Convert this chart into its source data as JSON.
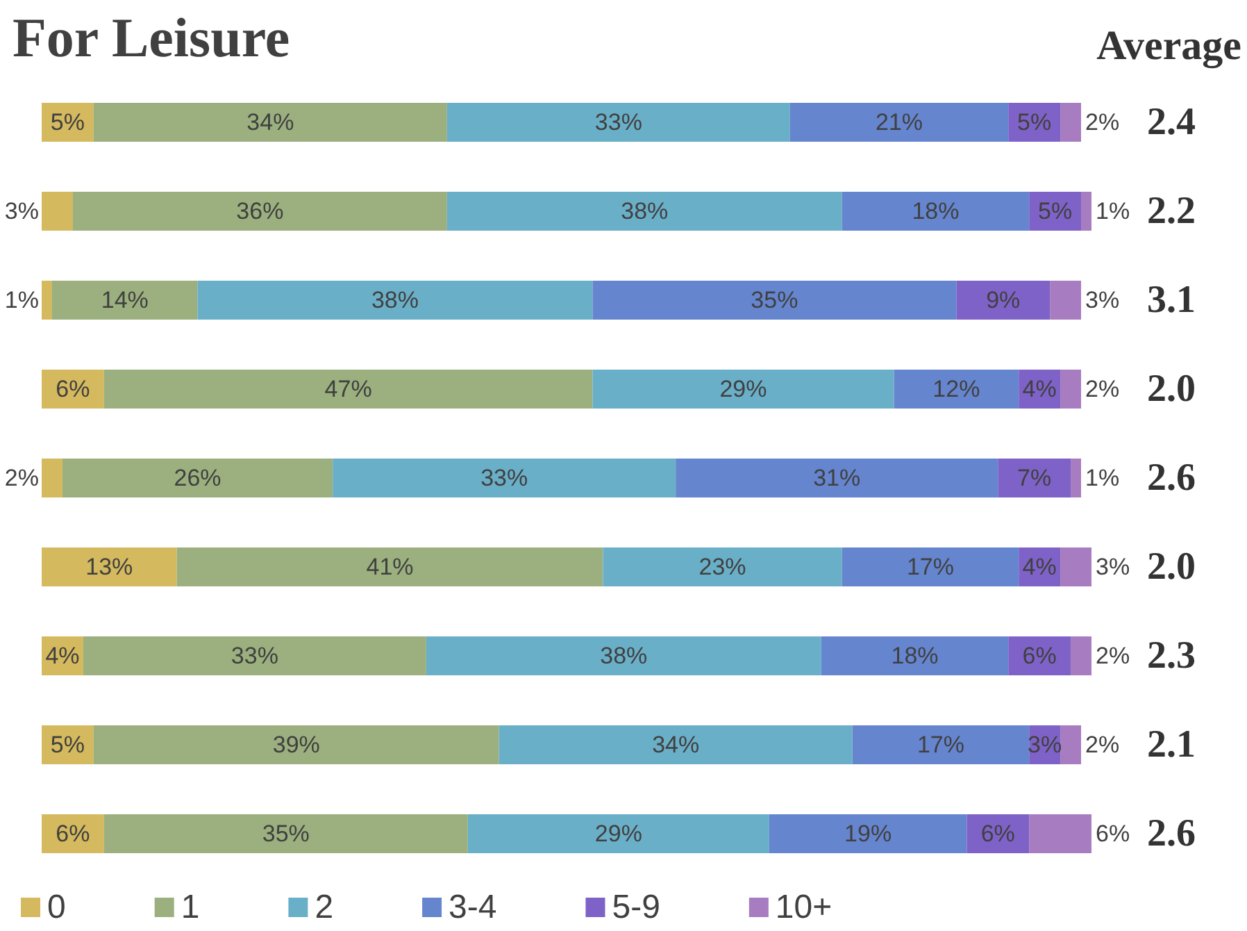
{
  "chart_data": {
    "type": "bar",
    "orientation": "horizontal",
    "stacked": true,
    "title": "For Leisure",
    "categories": [
      null,
      null,
      null,
      null,
      null,
      null,
      null,
      null,
      null
    ],
    "xlim": [
      0,
      101
    ],
    "tick_labels": false,
    "grid": false,
    "legend": "bottom",
    "series": [
      {
        "name": "0",
        "color": "#d4b95e",
        "values": [
          5,
          3,
          1,
          6,
          2,
          13,
          4,
          5,
          6
        ],
        "value_labels": [
          "5%",
          "3%",
          "1%",
          "6%",
          "2%",
          "13%",
          "4%",
          "5%",
          "6%"
        ]
      },
      {
        "name": "1",
        "color": "#9bb07e",
        "values": [
          34,
          36,
          14,
          47,
          26,
          41,
          33,
          39,
          35
        ],
        "value_labels": [
          "34%",
          "36%",
          "14%",
          "47%",
          "26%",
          "41%",
          "33%",
          "39%",
          "35%"
        ]
      },
      {
        "name": "2",
        "color": "#6aafc8",
        "values": [
          33,
          38,
          38,
          29,
          33,
          23,
          38,
          34,
          29
        ],
        "value_labels": [
          "33%",
          "38%",
          "38%",
          "29%",
          "33%",
          "23%",
          "38%",
          "34%",
          "29%"
        ]
      },
      {
        "name": "3-4",
        "color": "#6585cf",
        "values": [
          21,
          18,
          35,
          12,
          31,
          17,
          18,
          17,
          19
        ],
        "value_labels": [
          "21%",
          "18%",
          "35%",
          "12%",
          "31%",
          "17%",
          "18%",
          "17%",
          "19%"
        ]
      },
      {
        "name": "5-9",
        "color": "#7e62c8",
        "values": [
          5,
          5,
          9,
          4,
          7,
          4,
          6,
          3,
          6
        ],
        "value_labels": [
          "5%",
          "5%",
          "9%",
          "4%",
          "7%",
          "4%",
          "6%",
          "3%",
          "6%"
        ]
      },
      {
        "name": "10+",
        "color": "#a77cc0",
        "values": [
          2,
          1,
          3,
          2,
          1,
          3,
          2,
          2,
          6
        ],
        "value_labels": [
          "2%",
          "1%",
          "3%",
          "2%",
          "1%",
          "3%",
          "2%",
          "2%",
          "6%"
        ]
      }
    ],
    "annotations": [
      "Average",
      "2.4",
      "2.2",
      "3.1",
      "2.0",
      "2.6",
      "2.0",
      "2.3",
      "2.1",
      "2.6"
    ]
  }
}
